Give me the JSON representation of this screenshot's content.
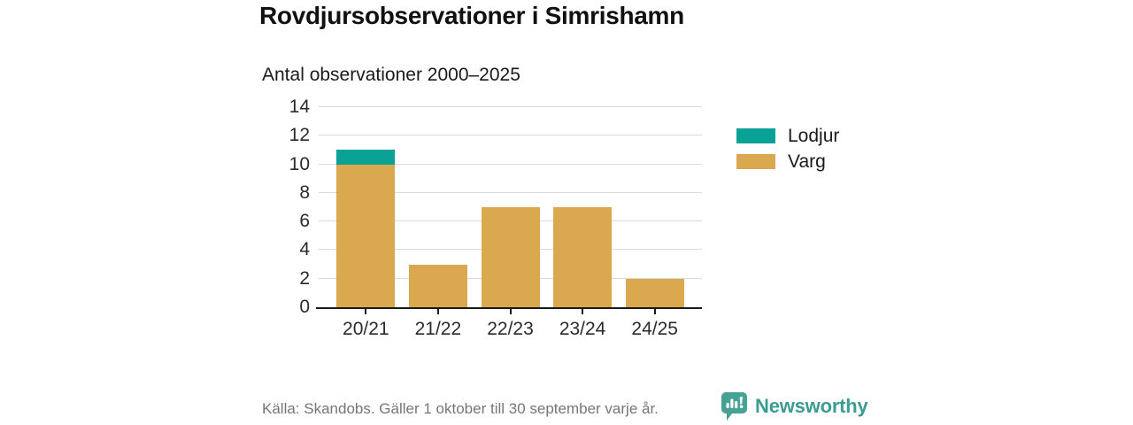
{
  "chart_data": {
    "type": "bar",
    "stacked": true,
    "title": "Rovdjursobservationer i Simrishamn",
    "subtitle": "Antal observationer 2000–2025",
    "categories": [
      "20/21",
      "21/22",
      "22/23",
      "23/24",
      "24/25"
    ],
    "series": [
      {
        "name": "Lodjur",
        "color": "#0aa296",
        "values": [
          1,
          0,
          0,
          0,
          0
        ]
      },
      {
        "name": "Varg",
        "color": "#d9a84f",
        "values": [
          10,
          3,
          7,
          7,
          2
        ]
      }
    ],
    "stack_order": [
      "Varg",
      "Lodjur"
    ],
    "totals": [
      11,
      3,
      7,
      7,
      2
    ],
    "xlabel": "",
    "ylabel": "",
    "ylim": [
      0,
      14
    ],
    "yticks": [
      0,
      2,
      4,
      6,
      8,
      10,
      12,
      14
    ],
    "grid": true,
    "legend_position": "right"
  },
  "legend": {
    "items": [
      {
        "label": "Lodjur",
        "color": "#0aa296"
      },
      {
        "label": "Varg",
        "color": "#d9a84f"
      }
    ]
  },
  "footer": {
    "source": "Källa: Skandobs. Gäller 1 oktober till 30 september varje år.",
    "brand": "Newsworthy"
  },
  "colors": {
    "lodjur": "#0aa296",
    "varg": "#d9a84f",
    "brand_teal": "#3b9c92",
    "grid": "#dadada",
    "axis": "#1a1a1a",
    "source_text": "#76757a"
  }
}
